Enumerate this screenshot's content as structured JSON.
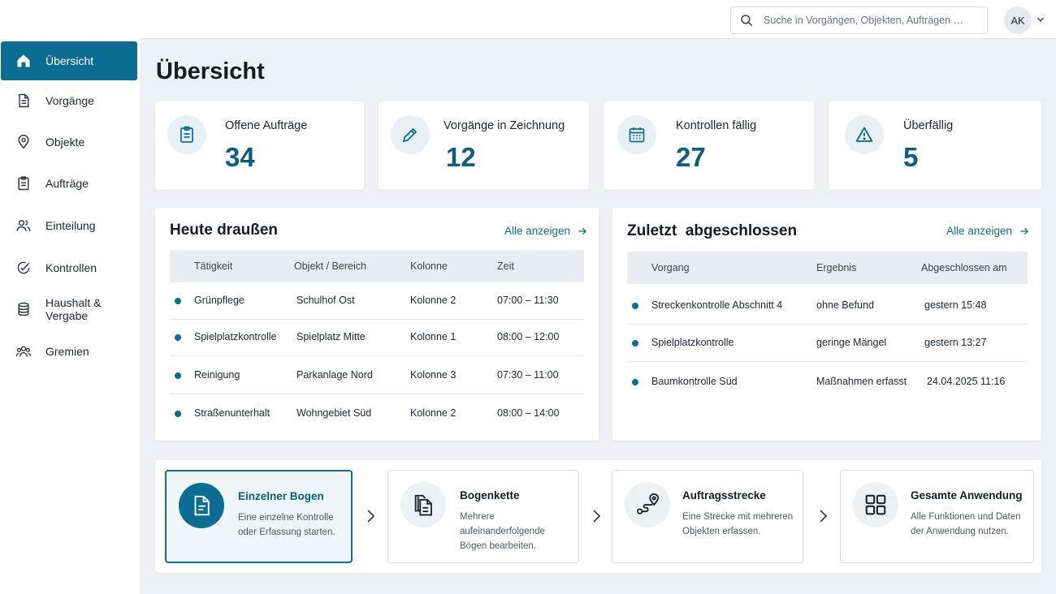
{
  "nav": {
    "items": [
      {
        "label": "Übersicht",
        "icon": "home-icon"
      },
      {
        "label": "Vorgänge",
        "icon": "document-icon"
      },
      {
        "label": "Objekte",
        "icon": "map-pin-icon"
      },
      {
        "label": "Aufträge",
        "icon": "clipboard-icon"
      },
      {
        "label": "Einteilung",
        "icon": "users-icon"
      },
      {
        "label": "Kontrollen",
        "icon": "check-circle-icon"
      },
      {
        "label": "Haushalt & Vergabe",
        "icon": "database-icon"
      },
      {
        "label": "Gremien",
        "icon": "group-icon"
      }
    ]
  },
  "topbar": {
    "search_placeholder": "Suche in Vorgängen, Objekten, Aufträgen …",
    "avatar_initials": "AK"
  },
  "page": {
    "title": "Übersicht"
  },
  "stats": [
    {
      "label": "Offene Aufträge",
      "value": "34",
      "icon": "clipboard-icon"
    },
    {
      "label": "Vorgänge in Zeichnung",
      "value": "12",
      "icon": "pencil-icon"
    },
    {
      "label": "Kontrollen fällig",
      "value": "27",
      "icon": "calendar-icon"
    },
    {
      "label": "Überfällig",
      "value": "5",
      "icon": "warning-icon"
    }
  ],
  "today": {
    "title": "Heute draußen",
    "link": "Alle anzeigen",
    "columns": [
      "Tätigkeit",
      "Objekt / Bereich",
      "Kolonne",
      "Zeit"
    ],
    "rows": [
      [
        "Grünpflege",
        "Schulhof Ost",
        "Kolonne 2",
        "07:00 – 11:30"
      ],
      [
        "Spielplatzkontrolle",
        "Spielplatz Mitte",
        "Kolonne 1",
        "08:00 – 12:00"
      ],
      [
        "Reinigung",
        "Parkanlage Nord",
        "Kolonne 3",
        "07:30 – 11:00"
      ],
      [
        "Straßenunterhalt",
        "Wohngebiet Süd",
        "Kolonne 2",
        "08:00 – 14:00"
      ]
    ]
  },
  "recent": {
    "title": "Zuletzt  abgeschlossen",
    "link": "Alle anzeigen",
    "columns": [
      "Vorgang",
      "Ergebnis",
      "Abgeschlossen am"
    ],
    "rows": [
      [
        "Streckenkontrolle Abschnitt 4",
        "ohne Befund",
        "gestern 15:48"
      ],
      [
        "Spielplatzkontrolle",
        "geringe Mängel",
        "gestern 13:27"
      ],
      [
        "Baumkontrolle Süd",
        "Maßnahmen erfasst",
        "24.04.2025 11:16"
      ]
    ]
  },
  "modes": [
    {
      "title": "Einzelner Bogen",
      "desc": "Eine einzelne Kontrolle oder Erfassung starten.",
      "icon": "document-icon",
      "active": true
    },
    {
      "title": "Bogenkette",
      "desc": "Mehrere aufeinanderfolgende Bögen bearbeiten.",
      "icon": "copy-stack-icon",
      "active": false
    },
    {
      "title": "Auftragsstrecke",
      "desc": "Eine Strecke mit mehreren Objekten erfassen.",
      "icon": "route-icon",
      "active": false
    },
    {
      "title": "Gesamte Anwendung",
      "desc": "Alle Funktionen und Daten der Anwendung nutzen.",
      "icon": "grid-icon",
      "active": false
    }
  ],
  "colors": {
    "accent": "#0c6d92",
    "accent_dark": "#0c5e80",
    "background": "#eef0f3"
  }
}
